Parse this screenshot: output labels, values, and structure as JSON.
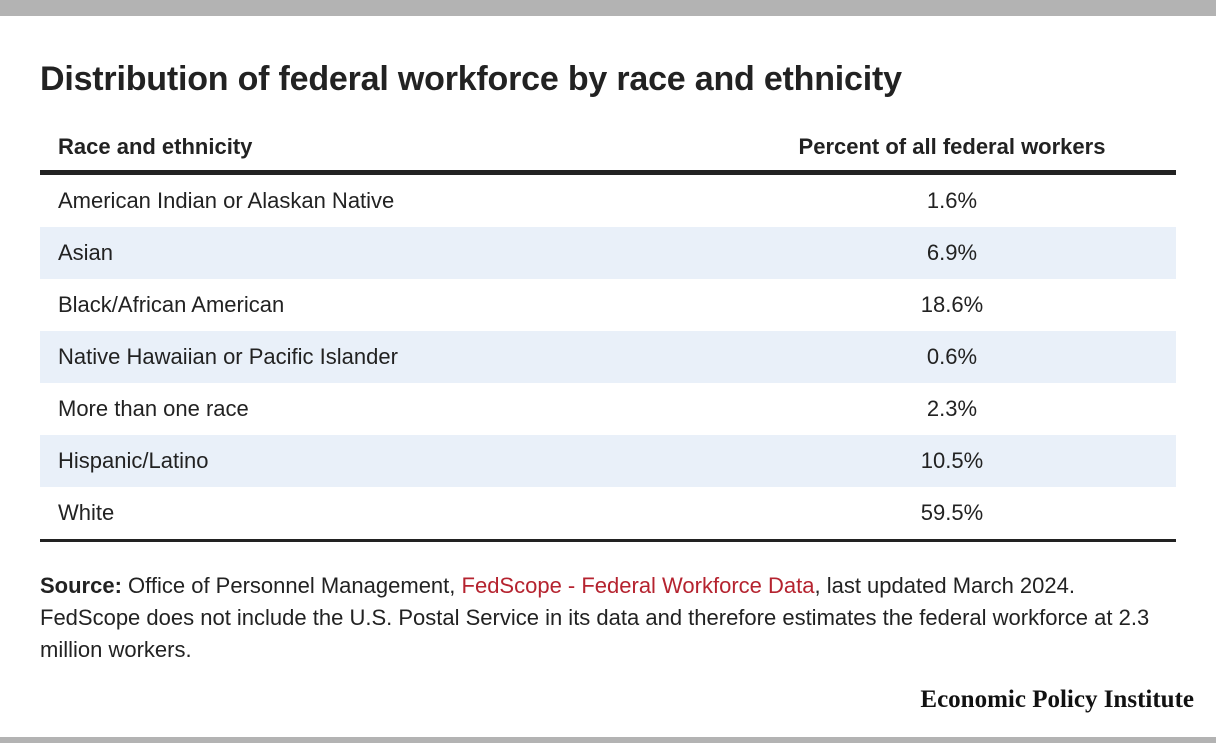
{
  "chart_data": {
    "type": "table",
    "title": "Distribution of federal workforce by race and ethnicity",
    "columns": [
      "Race and ethnicity",
      "Percent of all federal workers"
    ],
    "rows": [
      {
        "category": "American Indian or Alaskan Native",
        "value": "1.6%"
      },
      {
        "category": "Asian",
        "value": "6.9%"
      },
      {
        "category": "Black/African American",
        "value": "18.6%"
      },
      {
        "category": "Native Hawaiian or Pacific Islander",
        "value": "0.6%"
      },
      {
        "category": "More than one race",
        "value": "2.3%"
      },
      {
        "category": "Hispanic/Latino",
        "value": "10.5%"
      },
      {
        "category": "White",
        "value": "59.5%"
      }
    ]
  },
  "source": {
    "label": "Source:",
    "text_before": "Office of Personnel Management,",
    "link_text": "FedScope - Federal Workforce Data",
    "text_after": ", last updated March 2024. FedScope does not include the U.S. Postal Service in its data and therefore estimates the federal workforce at 2.3 million workers."
  },
  "brand": "Economic Policy Institute",
  "colors": {
    "stripe": "#e9f0f9",
    "link": "#b5232f",
    "frame_bars": "#b3b3b3",
    "rule": "#222222"
  }
}
